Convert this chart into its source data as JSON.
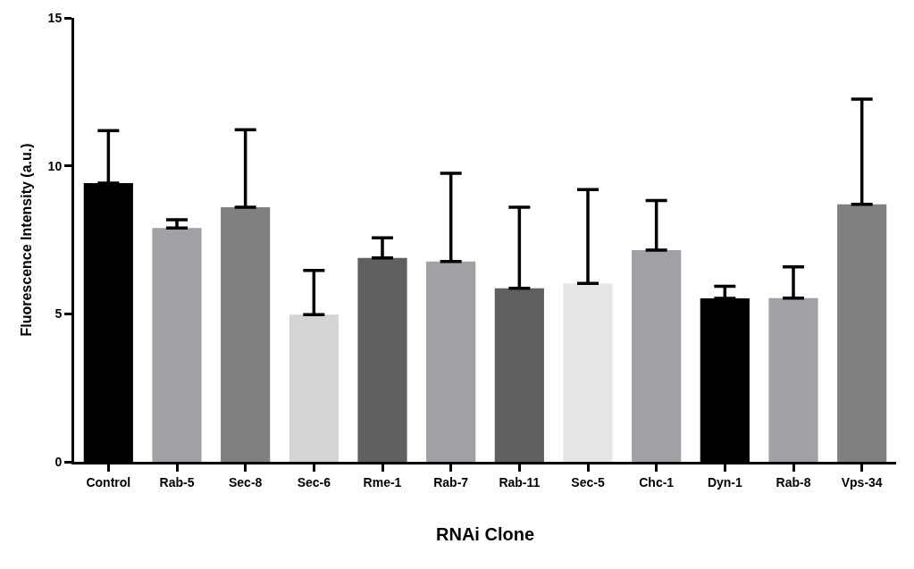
{
  "chart_data": {
    "type": "bar",
    "xlabel": "RNAi Clone",
    "ylabel": "Fluorescence Intensity (a.u.)",
    "categories": [
      "Control",
      "Rab-5",
      "Sec-8",
      "Sec-6",
      "Rme-1",
      "Rab-7",
      "Rab-11",
      "Sec-5",
      "Chc-1",
      "Dyn-1",
      "Rab-8",
      "Vps-34"
    ],
    "values": [
      9.42,
      7.9,
      8.6,
      4.97,
      6.89,
      6.77,
      5.86,
      6.03,
      7.15,
      5.52,
      5.53,
      8.7
    ],
    "errors": [
      [
        9.42,
        11.19
      ],
      [
        7.9,
        8.18
      ],
      [
        8.6,
        11.22
      ],
      [
        4.97,
        6.47
      ],
      [
        6.89,
        7.57
      ],
      [
        6.77,
        9.75
      ],
      [
        5.86,
        8.6
      ],
      [
        6.03,
        9.2
      ],
      [
        7.15,
        8.83
      ],
      [
        5.52,
        5.93
      ],
      [
        5.53,
        6.59
      ],
      [
        8.7,
        12.25
      ]
    ],
    "colors": [
      "#000000",
      "#a1a0a5",
      "#808080",
      "#d4d4d4",
      "#606060",
      "#a1a0a5",
      "#606060",
      "#e6e6e6",
      "#a1a0a5",
      "#000000",
      "#a1a0a5",
      "#808080"
    ],
    "ylim": [
      0,
      15
    ],
    "yticks": [
      0,
      5,
      10,
      15
    ]
  }
}
